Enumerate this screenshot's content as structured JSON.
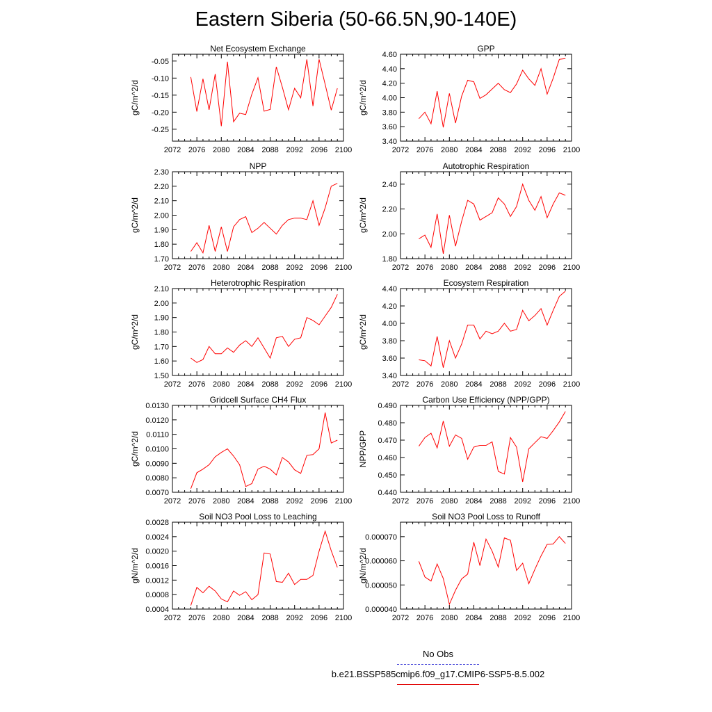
{
  "title": "Eastern Siberia (50-66.5N,90-140E)",
  "colors": {
    "series": "#ff0000",
    "obs": "#3b3bd6",
    "axis": "#000000"
  },
  "legend": {
    "obs_label": "No Obs",
    "case_label": "b.e21.BSSP585cmip6.f09_g17.CMIP6-SSP5-8.5.002"
  },
  "chart_data": [
    {
      "type": "line",
      "title": "Net Ecosystem Exchange",
      "ylabel": "gC/m^2/d",
      "xlim": [
        2072,
        2100
      ],
      "ylim": [
        -0.285,
        -0.03
      ],
      "xticks": [
        "2072",
        "2076",
        "2080",
        "2084",
        "2088",
        "2092",
        "2096",
        "2100"
      ],
      "yticks": [
        "-0.05",
        "-0.10",
        "-0.15",
        "-0.20",
        "-0.25"
      ],
      "x": [
        2075,
        2076,
        2077,
        2078,
        2079,
        2080,
        2081,
        2082,
        2083,
        2084,
        2085,
        2086,
        2087,
        2088,
        2089,
        2090,
        2091,
        2092,
        2093,
        2094,
        2095,
        2096,
        2097,
        2098,
        2099
      ],
      "values": [
        -0.097,
        -0.198,
        -0.102,
        -0.193,
        -0.088,
        -0.241,
        -0.052,
        -0.228,
        -0.203,
        -0.207,
        -0.147,
        -0.099,
        -0.197,
        -0.192,
        -0.067,
        -0.127,
        -0.193,
        -0.13,
        -0.158,
        -0.045,
        -0.182,
        -0.045,
        -0.118,
        -0.194,
        -0.13
      ]
    },
    {
      "type": "line",
      "title": "GPP",
      "ylabel": "gC/m^2/d",
      "xlim": [
        2072,
        2100
      ],
      "ylim": [
        3.4,
        4.6
      ],
      "xticks": [
        "2072",
        "2076",
        "2080",
        "2084",
        "2088",
        "2092",
        "2096",
        "2100"
      ],
      "yticks": [
        "3.40",
        "3.60",
        "3.80",
        "4.00",
        "4.20",
        "4.40",
        "4.60"
      ],
      "x": [
        2075,
        2076,
        2077,
        2078,
        2079,
        2080,
        2081,
        2082,
        2083,
        2084,
        2085,
        2086,
        2087,
        2088,
        2089,
        2090,
        2091,
        2092,
        2093,
        2094,
        2095,
        2096,
        2097,
        2098,
        2099
      ],
      "values": [
        3.71,
        3.8,
        3.64,
        4.09,
        3.59,
        4.06,
        3.65,
        4.02,
        4.24,
        4.22,
        3.99,
        4.04,
        4.12,
        4.2,
        4.11,
        4.07,
        4.19,
        4.38,
        4.26,
        4.17,
        4.4,
        4.05,
        4.27,
        4.53,
        4.54
      ]
    },
    {
      "type": "line",
      "title": "NPP",
      "ylabel": "gC/m^2/d",
      "xlim": [
        2072,
        2100
      ],
      "ylim": [
        1.7,
        2.3
      ],
      "xticks": [
        "2072",
        "2076",
        "2080",
        "2084",
        "2088",
        "2092",
        "2096",
        "2100"
      ],
      "yticks": [
        "1.70",
        "1.80",
        "1.90",
        "2.00",
        "2.10",
        "2.20",
        "2.30"
      ],
      "x": [
        2075,
        2076,
        2077,
        2078,
        2079,
        2080,
        2081,
        2082,
        2083,
        2084,
        2085,
        2086,
        2087,
        2088,
        2089,
        2090,
        2091,
        2092,
        2093,
        2094,
        2095,
        2096,
        2097,
        2098,
        2099
      ],
      "values": [
        1.75,
        1.81,
        1.74,
        1.93,
        1.75,
        1.92,
        1.75,
        1.92,
        1.97,
        1.99,
        1.88,
        1.91,
        1.95,
        1.91,
        1.87,
        1.93,
        1.97,
        1.98,
        1.98,
        1.97,
        2.1,
        1.93,
        2.05,
        2.2,
        2.22
      ]
    },
    {
      "type": "line",
      "title": "Autotrophic Respiration",
      "ylabel": "gC/m^2/d",
      "xlim": [
        2072,
        2100
      ],
      "ylim": [
        1.8,
        2.5
      ],
      "xticks": [
        "2072",
        "2076",
        "2080",
        "2084",
        "2088",
        "2092",
        "2096",
        "2100"
      ],
      "yticks": [
        "1.80",
        "2.00",
        "2.20",
        "2.40"
      ],
      "x": [
        2075,
        2076,
        2077,
        2078,
        2079,
        2080,
        2081,
        2082,
        2083,
        2084,
        2085,
        2086,
        2087,
        2088,
        2089,
        2090,
        2091,
        2092,
        2093,
        2094,
        2095,
        2096,
        2097,
        2098,
        2099
      ],
      "values": [
        1.96,
        1.99,
        1.89,
        2.16,
        1.84,
        2.15,
        1.9,
        2.1,
        2.27,
        2.24,
        2.11,
        2.14,
        2.17,
        2.29,
        2.24,
        2.14,
        2.22,
        2.4,
        2.27,
        2.19,
        2.3,
        2.13,
        2.24,
        2.33,
        2.31
      ]
    },
    {
      "type": "line",
      "title": "Heterotrophic Respiration",
      "ylabel": "gC/m^2/d",
      "xlim": [
        2072,
        2100
      ],
      "ylim": [
        1.5,
        2.1
      ],
      "xticks": [
        "2072",
        "2076",
        "2080",
        "2084",
        "2088",
        "2092",
        "2096",
        "2100"
      ],
      "yticks": [
        "1.50",
        "1.60",
        "1.70",
        "1.80",
        "1.90",
        "2.00",
        "2.10"
      ],
      "x": [
        2075,
        2076,
        2077,
        2078,
        2079,
        2080,
        2081,
        2082,
        2083,
        2084,
        2085,
        2086,
        2087,
        2088,
        2089,
        2090,
        2091,
        2092,
        2093,
        2094,
        2095,
        2096,
        2097,
        2098,
        2099
      ],
      "values": [
        1.62,
        1.59,
        1.61,
        1.7,
        1.65,
        1.65,
        1.69,
        1.66,
        1.71,
        1.74,
        1.7,
        1.76,
        1.69,
        1.62,
        1.76,
        1.77,
        1.7,
        1.75,
        1.76,
        1.9,
        1.88,
        1.85,
        1.91,
        1.97,
        2.06
      ]
    },
    {
      "type": "line",
      "title": "Ecosystem Respiration",
      "ylabel": "gC/m^2/d",
      "xlim": [
        2072,
        2100
      ],
      "ylim": [
        3.4,
        4.4
      ],
      "xticks": [
        "2072",
        "2076",
        "2080",
        "2084",
        "2088",
        "2092",
        "2096",
        "2100"
      ],
      "yticks": [
        "3.40",
        "3.60",
        "3.80",
        "4.00",
        "4.20",
        "4.40"
      ],
      "x": [
        2075,
        2076,
        2077,
        2078,
        2079,
        2080,
        2081,
        2082,
        2083,
        2084,
        2085,
        2086,
        2087,
        2088,
        2089,
        2090,
        2091,
        2092,
        2093,
        2094,
        2095,
        2096,
        2097,
        2098,
        2099
      ],
      "values": [
        3.58,
        3.57,
        3.51,
        3.85,
        3.49,
        3.8,
        3.6,
        3.76,
        3.98,
        3.98,
        3.82,
        3.91,
        3.88,
        3.91,
        4.0,
        3.91,
        3.93,
        4.15,
        4.03,
        4.09,
        4.17,
        3.98,
        4.15,
        4.31,
        4.37
      ]
    },
    {
      "type": "line",
      "title": "Gridcell Surface CH4 Flux",
      "ylabel": "gC/m^2/d",
      "xlim": [
        2072,
        2100
      ],
      "ylim": [
        0.007,
        0.013
      ],
      "xticks": [
        "2072",
        "2076",
        "2080",
        "2084",
        "2088",
        "2092",
        "2096",
        "2100"
      ],
      "yticks": [
        "0.0070",
        "0.0080",
        "0.0090",
        "0.0100",
        "0.0110",
        "0.0120",
        "0.0130"
      ],
      "x": [
        2075,
        2076,
        2077,
        2078,
        2079,
        2080,
        2081,
        2082,
        2083,
        2084,
        2085,
        2086,
        2087,
        2088,
        2089,
        2090,
        2091,
        2092,
        2093,
        2094,
        2095,
        2096,
        2097,
        2098,
        2099
      ],
      "values": [
        0.00725,
        0.00835,
        0.0086,
        0.0089,
        0.00945,
        0.00975,
        0.01,
        0.0095,
        0.0089,
        0.0074,
        0.0076,
        0.0086,
        0.0088,
        0.0086,
        0.0082,
        0.0094,
        0.0091,
        0.00855,
        0.0083,
        0.00955,
        0.0096,
        0.01,
        0.0125,
        0.0104,
        0.0106
      ]
    },
    {
      "type": "line",
      "title": "Carbon Use Efficiency (NPP/GPP)",
      "ylabel": "NPP/GPP",
      "xlim": [
        2072,
        2100
      ],
      "ylim": [
        0.44,
        0.49
      ],
      "xticks": [
        "2072",
        "2076",
        "2080",
        "2084",
        "2088",
        "2092",
        "2096",
        "2100"
      ],
      "yticks": [
        "0.440",
        "0.450",
        "0.460",
        "0.470",
        "0.480",
        "0.490"
      ],
      "x": [
        2075,
        2076,
        2077,
        2078,
        2079,
        2080,
        2081,
        2082,
        2083,
        2084,
        2085,
        2086,
        2087,
        2088,
        2089,
        2090,
        2091,
        2092,
        2093,
        2094,
        2095,
        2096,
        2097,
        2098,
        2099
      ],
      "values": [
        0.4665,
        0.4715,
        0.474,
        0.4655,
        0.481,
        0.4665,
        0.473,
        0.471,
        0.459,
        0.466,
        0.467,
        0.467,
        0.469,
        0.452,
        0.4505,
        0.4715,
        0.466,
        0.446,
        0.465,
        0.4685,
        0.472,
        0.471,
        0.4755,
        0.4805,
        0.4865
      ]
    },
    {
      "type": "line",
      "title": "Soil NO3 Pool Loss to Leaching",
      "ylabel": "gN/m^2/d",
      "xlim": [
        2072,
        2100
      ],
      "ylim": [
        0.0004,
        0.0028
      ],
      "xticks": [
        "2072",
        "2076",
        "2080",
        "2084",
        "2088",
        "2092",
        "2096",
        "2100"
      ],
      "yticks": [
        "0.0004",
        "0.0008",
        "0.0012",
        "0.0016",
        "0.0020",
        "0.0024",
        "0.0028"
      ],
      "x": [
        2075,
        2076,
        2077,
        2078,
        2079,
        2080,
        2081,
        2082,
        2083,
        2084,
        2085,
        2086,
        2087,
        2088,
        2089,
        2090,
        2091,
        2092,
        2093,
        2094,
        2095,
        2096,
        2097,
        2098,
        2099
      ],
      "values": [
        0.0005,
        0.001,
        0.00085,
        0.00103,
        0.0009,
        0.00068,
        0.0006,
        0.0009,
        0.00078,
        0.00088,
        0.00066,
        0.0008,
        0.00195,
        0.00192,
        0.00116,
        0.00114,
        0.00139,
        0.00108,
        0.00122,
        0.00122,
        0.00133,
        0.002,
        0.00255,
        0.00201,
        0.00155
      ]
    },
    {
      "type": "line",
      "title": "Soil NO3 Pool Loss to Runoff",
      "ylabel": "gN/m^2/d",
      "xlim": [
        2072,
        2100
      ],
      "ylim": [
        4e-05,
        7.6e-05
      ],
      "xticks": [
        "2072",
        "2076",
        "2080",
        "2084",
        "2088",
        "2092",
        "2096",
        "2100"
      ],
      "yticks": [
        "0.000040",
        "0.000050",
        "0.000060",
        "0.000070"
      ],
      "x": [
        2075,
        2076,
        2077,
        2078,
        2079,
        2080,
        2081,
        2082,
        2083,
        2084,
        2085,
        2086,
        2087,
        2088,
        2089,
        2090,
        2091,
        2092,
        2093,
        2094,
        2095,
        2096,
        2097,
        2098,
        2099
      ],
      "values": [
        5.98e-05,
        5.33e-05,
        5.16e-05,
        5.87e-05,
        5.27e-05,
        4.2e-05,
        4.78e-05,
        5.25e-05,
        5.45e-05,
        6.77e-05,
        5.8e-05,
        6.9e-05,
        6.4e-05,
        5.74e-05,
        6.95e-05,
        6.85e-05,
        5.6e-05,
        5.9e-05,
        5.05e-05,
        5.65e-05,
        6.2e-05,
        6.68e-05,
        6.7e-05,
        7e-05,
        6.72e-05
      ]
    }
  ]
}
